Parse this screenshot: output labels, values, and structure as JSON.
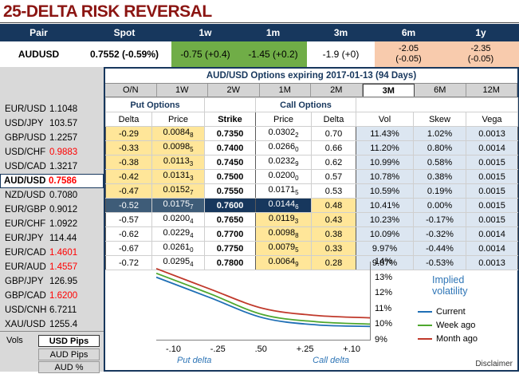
{
  "title": "25-DELTA RISK REVERSAL",
  "subtitle": "AUD/USD Options expiring 2017-01-13 (94 Days)",
  "disclaimer": "Disclaimer",
  "colors": {
    "header_navy": "#17375D",
    "positive_green": "#70AD47",
    "warm_tan": "#F8CBAD",
    "highlight_yellow": "#FFE699",
    "vol_panel_blue": "#DCE6F1",
    "negative_red": "#FF0000",
    "title_red": "#8B1512"
  },
  "summary": {
    "columns": [
      "Pair",
      "Spot",
      "1w",
      "1m",
      "3m",
      "6m",
      "1y"
    ],
    "pair": "AUDUSD",
    "spot": "0.7552 (-0.59%)",
    "rr_1w": "-0.75 (+0.4)",
    "rr_1m": "-1.45 (+0.2)",
    "rr_3m": "-1.9 (+0)",
    "rr_6m": "-2.05",
    "rr_6m_chg": "(-0.05)",
    "rr_1y": "-2.35",
    "rr_1y_chg": "(-0.05)"
  },
  "tabs": [
    {
      "label": "O/N",
      "selected": false
    },
    {
      "label": "1W",
      "selected": false
    },
    {
      "label": "2W",
      "selected": false
    },
    {
      "label": "1M",
      "selected": false
    },
    {
      "label": "2M",
      "selected": false
    },
    {
      "label": "3M",
      "selected": true
    },
    {
      "label": "6M",
      "selected": false
    },
    {
      "label": "12M",
      "selected": false
    }
  ],
  "sidebar": {
    "pairs": [
      {
        "name": "EUR/USD",
        "value": "1.1048",
        "value_color": "#000000"
      },
      {
        "name": "USD/JPY",
        "value": "103.57",
        "value_color": "#000000"
      },
      {
        "name": "GBP/USD",
        "value": "1.2257",
        "value_color": "#000000"
      },
      {
        "name": "USD/CHF",
        "value": "0.9883",
        "value_color": "#FF0000"
      },
      {
        "name": "USD/CAD",
        "value": "1.3217",
        "value_color": "#000000"
      },
      {
        "name": "AUD/USD",
        "value": "0.7586",
        "value_color": "#FF0000"
      },
      {
        "name": "NZD/USD",
        "value": "0.7080",
        "value_color": "#000000"
      },
      {
        "name": "EUR/GBP",
        "value": "0.9012",
        "value_color": "#000000"
      },
      {
        "name": "EUR/CHF",
        "value": "1.0922",
        "value_color": "#000000"
      },
      {
        "name": "EUR/JPY",
        "value": "114.44",
        "value_color": "#000000"
      },
      {
        "name": "EUR/CAD",
        "value": "1.4601",
        "value_color": "#FF0000"
      },
      {
        "name": "EUR/AUD",
        "value": "1.4557",
        "value_color": "#FF0000"
      },
      {
        "name": "GBP/JPY",
        "value": "126.95",
        "value_color": "#000000"
      },
      {
        "name": "GBP/CAD",
        "value": "1.6200",
        "value_color": "#FF0000"
      },
      {
        "name": "USD/CNH",
        "value": "6.7211",
        "value_color": "#000000"
      },
      {
        "name": "XAU/USD",
        "value": "1255.4",
        "value_color": "#000000"
      }
    ],
    "vols_label": "Vols",
    "modes": [
      {
        "label": "USD Pips",
        "selected": true
      },
      {
        "label": "AUD Pips",
        "selected": false
      },
      {
        "label": "AUD %",
        "selected": false
      }
    ]
  },
  "options_table": {
    "put_header": "Put Options",
    "call_header": "Call Options",
    "columns": [
      "Delta",
      "Price",
      "Strike",
      "Price",
      "Delta",
      "Vol",
      "Skew",
      "Vega"
    ],
    "rows": [
      {
        "put_delta": "-0.29",
        "put_price": "0.0084",
        "put_price_sub": "8",
        "strike": "0.7350",
        "call_price": "0.0302",
        "call_price_sub": "2",
        "call_delta": "0.70",
        "vol": "11.43%",
        "skew": "1.02%",
        "vega": "0.0013"
      },
      {
        "put_delta": "-0.33",
        "put_price": "0.0098",
        "put_price_sub": "5",
        "strike": "0.7400",
        "call_price": "0.0266",
        "call_price_sub": "0",
        "call_delta": "0.66",
        "vol": "11.20%",
        "skew": "0.80%",
        "vega": "0.0014"
      },
      {
        "put_delta": "-0.38",
        "put_price": "0.0113",
        "put_price_sub": "3",
        "strike": "0.7450",
        "call_price": "0.0232",
        "call_price_sub": "9",
        "call_delta": "0.62",
        "vol": "10.99%",
        "skew": "0.58%",
        "vega": "0.0015"
      },
      {
        "put_delta": "-0.42",
        "put_price": "0.0131",
        "put_price_sub": "3",
        "strike": "0.7500",
        "call_price": "0.0200",
        "call_price_sub": "0",
        "call_delta": "0.57",
        "vol": "10.78%",
        "skew": "0.38%",
        "vega": "0.0015"
      },
      {
        "put_delta": "-0.47",
        "put_price": "0.0152",
        "put_price_sub": "7",
        "strike": "0.7550",
        "call_price": "0.0171",
        "call_price_sub": "5",
        "call_delta": "0.53",
        "vol": "10.59%",
        "skew": "0.19%",
        "vega": "0.0015"
      },
      {
        "put_delta": "-0.52",
        "put_price": "0.0175",
        "put_price_sub": "7",
        "strike": "0.7600",
        "call_price": "0.0144",
        "call_price_sub": "6",
        "call_delta": "0.48",
        "vol": "10.41%",
        "skew": "0.00%",
        "vega": "0.0015"
      },
      {
        "put_delta": "-0.57",
        "put_price": "0.0200",
        "put_price_sub": "4",
        "strike": "0.7650",
        "call_price": "0.0119",
        "call_price_sub": "3",
        "call_delta": "0.43",
        "vol": "10.23%",
        "skew": "-0.17%",
        "vega": "0.0015"
      },
      {
        "put_delta": "-0.62",
        "put_price": "0.0229",
        "put_price_sub": "4",
        "strike": "0.7700",
        "call_price": "0.0098",
        "call_price_sub": "8",
        "call_delta": "0.38",
        "vol": "10.09%",
        "skew": "-0.32%",
        "vega": "0.0014"
      },
      {
        "put_delta": "-0.67",
        "put_price": "0.0261",
        "put_price_sub": "0",
        "strike": "0.7750",
        "call_price": "0.0079",
        "call_price_sub": "5",
        "call_delta": "0.33",
        "vol": "9.97%",
        "skew": "-0.44%",
        "vega": "0.0014"
      },
      {
        "put_delta": "-0.72",
        "put_price": "0.0295",
        "put_price_sub": "4",
        "strike": "0.7800",
        "call_price": "0.0064",
        "call_price_sub": "9",
        "call_delta": "0.28",
        "vol": "9.87%",
        "skew": "-0.53%",
        "vega": "0.0013"
      }
    ]
  },
  "chart_data": {
    "type": "line",
    "title": "Implied volatility",
    "x_ticks": [
      "-.10",
      "-.25",
      ".50",
      "+.25",
      "+.10"
    ],
    "x_axis_left_label": "Put delta",
    "x_axis_right_label": "Call delta",
    "y_ticks": [
      "14%",
      "13%",
      "12%",
      "11%",
      "10%",
      "9%"
    ],
    "ylim": [
      9,
      14
    ],
    "legend_position": "right",
    "series": [
      {
        "name": "Current",
        "color": "#1F6FB5",
        "values": [
          13.0,
          11.7,
          10.4,
          9.95,
          9.85
        ]
      },
      {
        "name": "Week ago",
        "color": "#4EA72E",
        "values": [
          13.25,
          11.95,
          10.6,
          10.15,
          10.0
        ]
      },
      {
        "name": "Month ago",
        "color": "#C0392B",
        "values": [
          13.55,
          12.25,
          11.0,
          10.55,
          10.4
        ]
      }
    ]
  }
}
